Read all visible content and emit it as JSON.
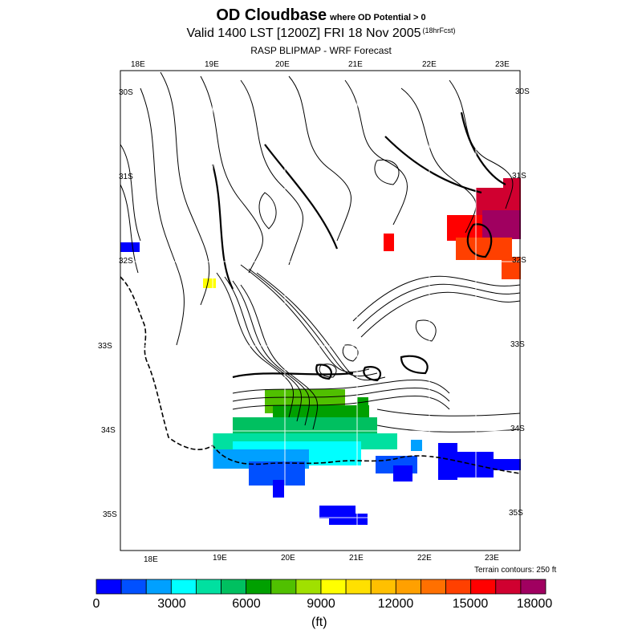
{
  "title": {
    "main": "OD Cloudbase",
    "qualifier": "where OD Potential > 0",
    "valid": "Valid 1400 LST [1200Z] FRI 18 Nov 2005",
    "forecast_tag": "(18hrFcst)",
    "subtitle": "RASP BLIPMAP - WRF Forecast"
  },
  "map": {
    "lon_top": [
      "18E",
      "19E",
      "20E",
      "21E",
      "22E",
      "23E"
    ],
    "lon_bottom": [
      "18E",
      "19E",
      "20E",
      "21E",
      "22E",
      "23E"
    ],
    "lat_left": [
      "30S",
      "31S",
      "32S",
      "33S",
      "34S",
      "35S"
    ],
    "lat_right": [
      "30S",
      "31S",
      "32S",
      "33S",
      "34S",
      "35S"
    ],
    "terrain_note": "Terrain contours: 250 ft"
  },
  "colorbar": {
    "unit": "(ft)",
    "labels": [
      "0",
      "3000",
      "6000",
      "9000",
      "12000",
      "15000",
      "18000"
    ],
    "colors": [
      "#0000ff",
      "#0050ff",
      "#00a0ff",
      "#00ffff",
      "#00e0a0",
      "#00c060",
      "#00a000",
      "#50c000",
      "#a0e000",
      "#ffff00",
      "#ffe000",
      "#ffc000",
      "#ffa000",
      "#ff7000",
      "#ff4000",
      "#ff0000",
      "#d00030",
      "#a00060"
    ]
  },
  "cells": [
    {
      "c": "#0000ff",
      "r": [
        150,
        302,
        24,
        12
      ]
    },
    {
      "c": "#ffff00",
      "r": [
        253,
        347,
        16,
        12
      ]
    },
    {
      "c": "#ff0000",
      "r": [
        478,
        291,
        13,
        22
      ]
    },
    {
      "c": "#d00030",
      "r": [
        593,
        234,
        56,
        40
      ]
    },
    {
      "c": "#d00030",
      "r": [
        627,
        222,
        22,
        20
      ]
    },
    {
      "c": "#ff0000",
      "r": [
        557,
        268,
        44,
        32
      ]
    },
    {
      "c": "#a00060",
      "r": [
        601,
        262,
        48,
        36
      ]
    },
    {
      "c": "#ff4000",
      "r": [
        568,
        296,
        70,
        28
      ]
    },
    {
      "c": "#ff4000",
      "r": [
        625,
        320,
        24,
        28
      ]
    },
    {
      "c": "#50c000",
      "r": [
        330,
        485,
        100,
        30
      ]
    },
    {
      "c": "#00a000",
      "r": [
        340,
        505,
        120,
        30
      ]
    },
    {
      "c": "#00a000",
      "r": [
        445,
        495,
        14,
        20
      ]
    },
    {
      "c": "#00c060",
      "r": [
        290,
        520,
        180,
        30
      ]
    },
    {
      "c": "#00e0a0",
      "r": [
        265,
        540,
        230,
        20
      ]
    },
    {
      "c": "#00ffff",
      "r": [
        290,
        550,
        160,
        30
      ]
    },
    {
      "c": "#00a0ff",
      "r": [
        265,
        560,
        120,
        24
      ]
    },
    {
      "c": "#0050ff",
      "r": [
        310,
        575,
        70,
        30
      ]
    },
    {
      "c": "#0000ff",
      "r": [
        340,
        598,
        14,
        22
      ]
    },
    {
      "c": "#0050ff",
      "r": [
        468,
        568,
        52,
        22
      ]
    },
    {
      "c": "#0000ff",
      "r": [
        490,
        580,
        24,
        20
      ]
    },
    {
      "c": "#00a0ff",
      "r": [
        512,
        548,
        14,
        14
      ]
    },
    {
      "c": "#0000ff",
      "r": [
        546,
        552,
        24,
        46
      ]
    },
    {
      "c": "#0000ff",
      "r": [
        570,
        563,
        45,
        32
      ]
    },
    {
      "c": "#0000ff",
      "r": [
        615,
        572,
        34,
        14
      ]
    },
    {
      "c": "#0000ff",
      "r": [
        398,
        630,
        45,
        16
      ]
    },
    {
      "c": "#0000ff",
      "r": [
        410,
        640,
        48,
        14
      ]
    }
  ]
}
